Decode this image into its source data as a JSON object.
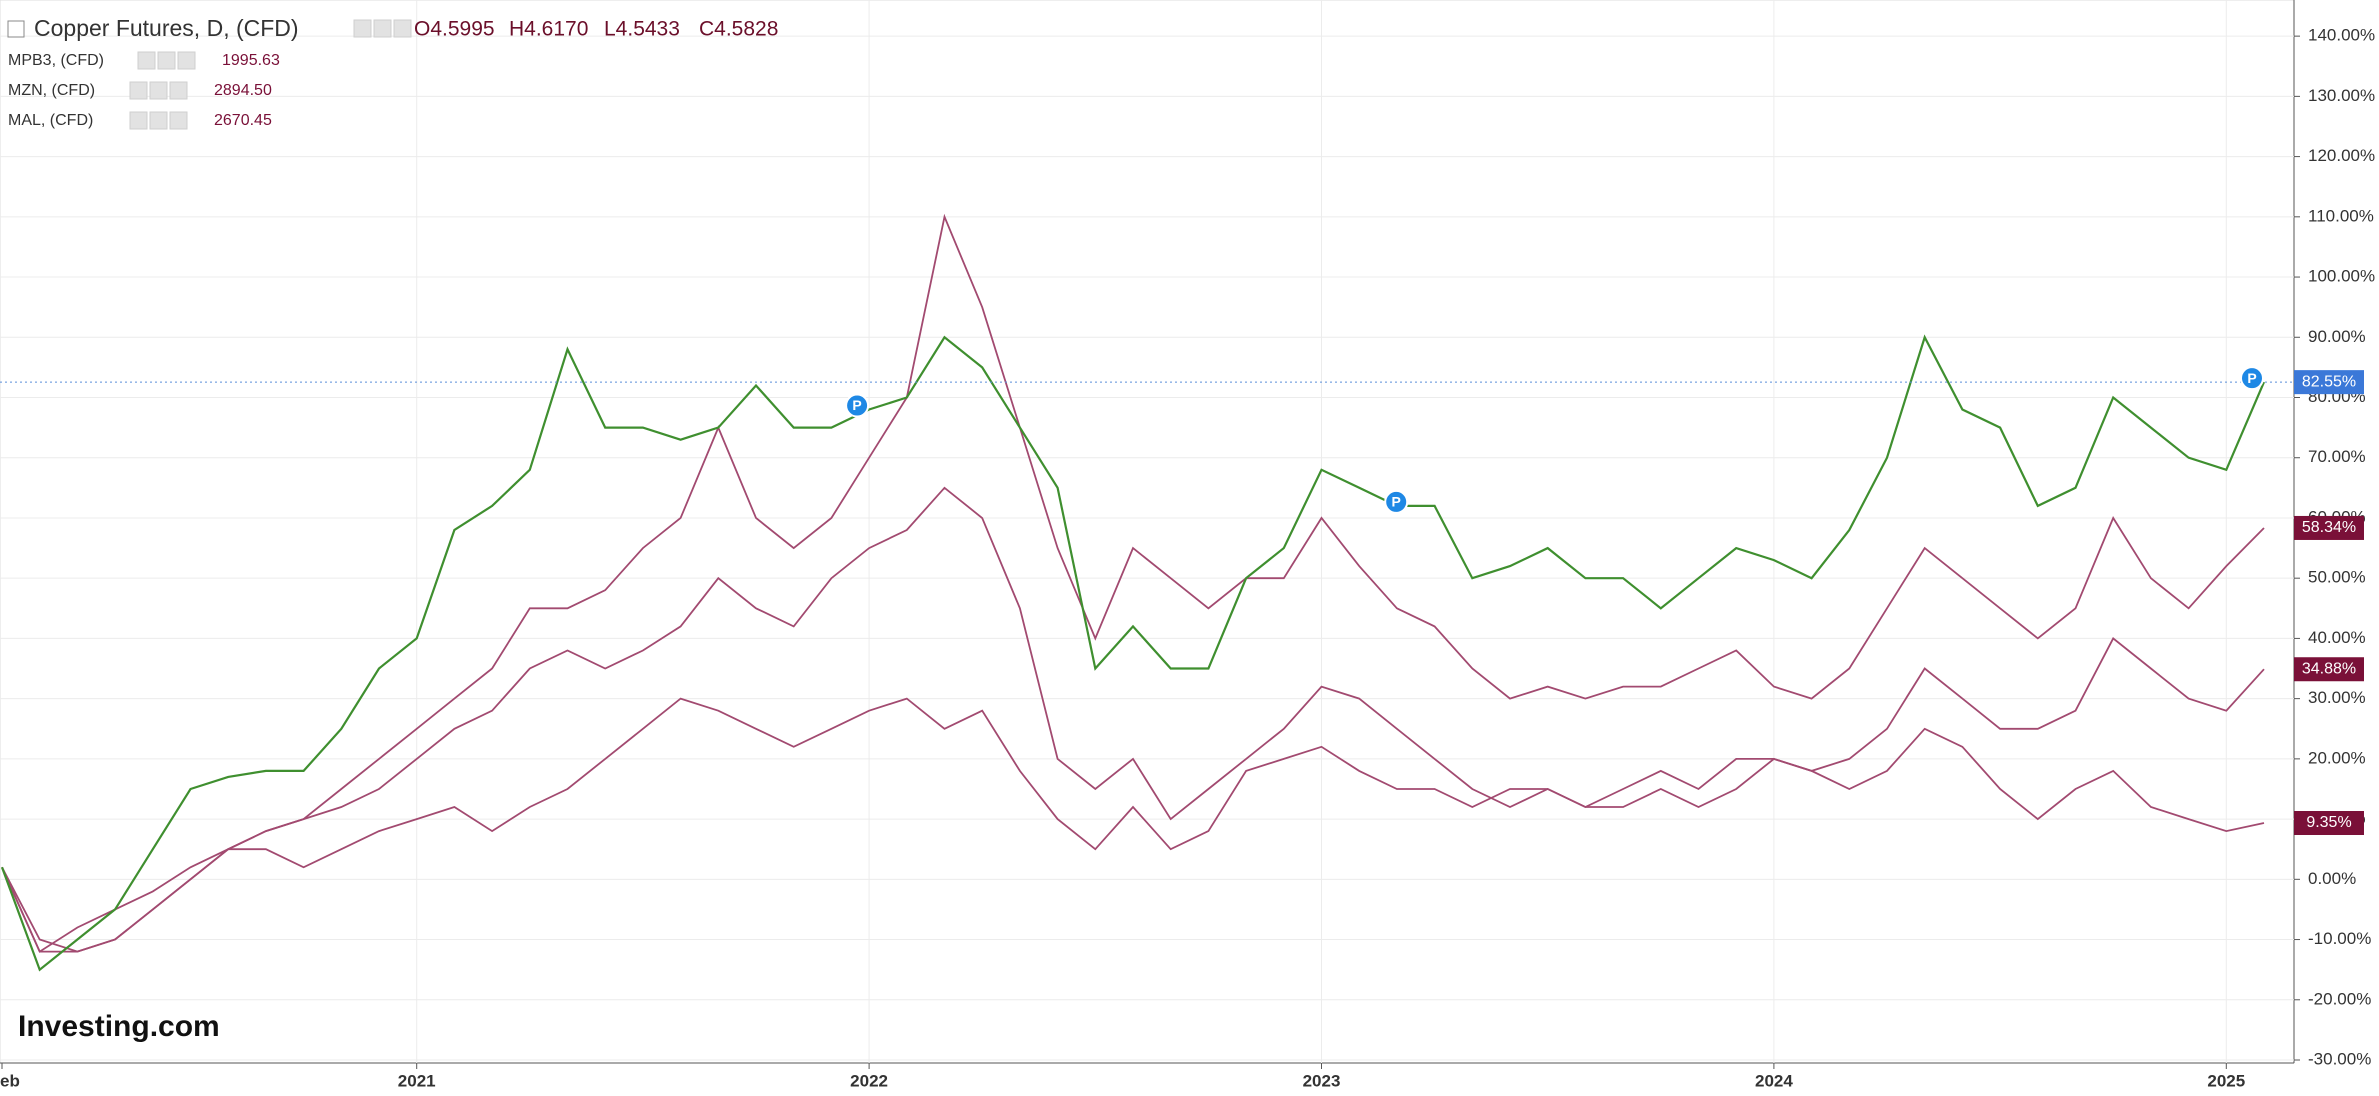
{
  "chart_data": {
    "type": "line",
    "ohlc": [
      "O4.5995",
      "H4.6170",
      "L4.5433",
      "C4.5828"
    ],
    "watermark": "Investing.com",
    "pin_label": "P",
    "grid": true,
    "categories": [
      "eb",
      null,
      null,
      null,
      null,
      null,
      null,
      null,
      null,
      null,
      null,
      "2021",
      null,
      null,
      null,
      null,
      null,
      null,
      null,
      null,
      null,
      null,
      null,
      "2022",
      null,
      null,
      null,
      null,
      null,
      null,
      null,
      null,
      null,
      null,
      null,
      "2023",
      null,
      null,
      null,
      null,
      null,
      null,
      null,
      null,
      null,
      null,
      null,
      "2024",
      null,
      null,
      null,
      null,
      null,
      null,
      null,
      null,
      null,
      null,
      null,
      "2025",
      null
    ],
    "ylim": [
      -30,
      146
    ],
    "yticks": [
      {
        "value": -30,
        "label": "-30.00%"
      },
      {
        "value": -20,
        "label": "-20.00%"
      },
      {
        "value": -10,
        "label": "-10.00%"
      },
      {
        "value": 0,
        "label": "0.00%"
      },
      {
        "value": 10,
        "label": "10.00%"
      },
      {
        "value": 20,
        "label": "20.00%"
      },
      {
        "value": 30,
        "label": "30.00%"
      },
      {
        "value": 40,
        "label": "40.00%"
      },
      {
        "value": 50,
        "label": "50.00%"
      },
      {
        "value": 60,
        "label": "60.00%"
      },
      {
        "value": 70,
        "label": "70.00%"
      },
      {
        "value": 80,
        "label": "80.00%"
      },
      {
        "value": 90,
        "label": "90.00%"
      },
      {
        "value": 100,
        "label": "100.00%"
      },
      {
        "value": 110,
        "label": "110.00%"
      },
      {
        "value": 120,
        "label": "120.00%"
      },
      {
        "value": 130,
        "label": "130.00%"
      },
      {
        "value": 140,
        "label": "140.00%"
      }
    ],
    "series": [
      {
        "name": "Copper Futures, D, (CFD)",
        "color": "#3f8f2f",
        "label_color": "#3b78d8",
        "end_label": "82.55%",
        "values": [
          2,
          -15,
          -10,
          -5,
          5,
          15,
          17,
          18,
          18,
          25,
          35,
          40,
          58,
          62,
          68,
          88,
          75,
          75,
          73,
          75,
          82,
          75,
          75,
          78,
          80,
          90,
          85,
          75,
          65,
          35,
          42,
          35,
          35,
          50,
          55,
          68,
          65,
          62,
          62,
          50,
          52,
          55,
          50,
          50,
          45,
          50,
          55,
          53,
          50,
          58,
          70,
          90,
          78,
          75,
          62,
          65,
          80,
          75,
          70,
          68,
          82.55
        ]
      },
      {
        "name": "MPB3, (CFD)",
        "price": "1995.63",
        "color": "#a24a70",
        "label_color": "#7a1038",
        "end_label": "9.35%",
        "values": [
          2,
          -12,
          -8,
          -5,
          -2,
          2,
          5,
          5,
          2,
          5,
          8,
          10,
          12,
          8,
          12,
          15,
          20,
          25,
          30,
          28,
          25,
          22,
          25,
          28,
          30,
          25,
          28,
          18,
          10,
          5,
          12,
          5,
          8,
          18,
          20,
          22,
          18,
          15,
          15,
          12,
          15,
          15,
          12,
          12,
          15,
          12,
          15,
          20,
          18,
          15,
          18,
          25,
          22,
          15,
          10,
          15,
          18,
          12,
          10,
          8,
          9.35
        ]
      },
      {
        "name": "MZN, (CFD)",
        "price": "2894.50",
        "color": "#a24a70",
        "label_color": "#7a1038",
        "end_label": "34.88%",
        "values": [
          2,
          -10,
          -12,
          -10,
          -5,
          0,
          5,
          8,
          10,
          12,
          15,
          20,
          25,
          28,
          35,
          38,
          35,
          38,
          42,
          50,
          45,
          42,
          50,
          55,
          58,
          65,
          60,
          45,
          20,
          15,
          20,
          10,
          15,
          20,
          25,
          32,
          30,
          25,
          20,
          15,
          12,
          15,
          12,
          15,
          18,
          15,
          20,
          20,
          18,
          20,
          25,
          35,
          30,
          25,
          25,
          28,
          40,
          35,
          30,
          28,
          34.88
        ]
      },
      {
        "name": "MAL, (CFD)",
        "price": "2670.45",
        "color": "#a24a70",
        "label_color": "#7a1038",
        "end_label": "58.34%",
        "values": [
          2,
          -12,
          -12,
          -10,
          -5,
          0,
          5,
          8,
          10,
          15,
          20,
          25,
          30,
          35,
          45,
          45,
          48,
          55,
          60,
          75,
          60,
          55,
          60,
          70,
          80,
          110,
          95,
          75,
          55,
          40,
          55,
          50,
          45,
          50,
          50,
          60,
          52,
          45,
          42,
          35,
          30,
          32,
          30,
          32,
          32,
          35,
          38,
          32,
          30,
          35,
          45,
          55,
          50,
          45,
          40,
          45,
          60,
          50,
          45,
          52,
          58.34
        ]
      }
    ]
  }
}
